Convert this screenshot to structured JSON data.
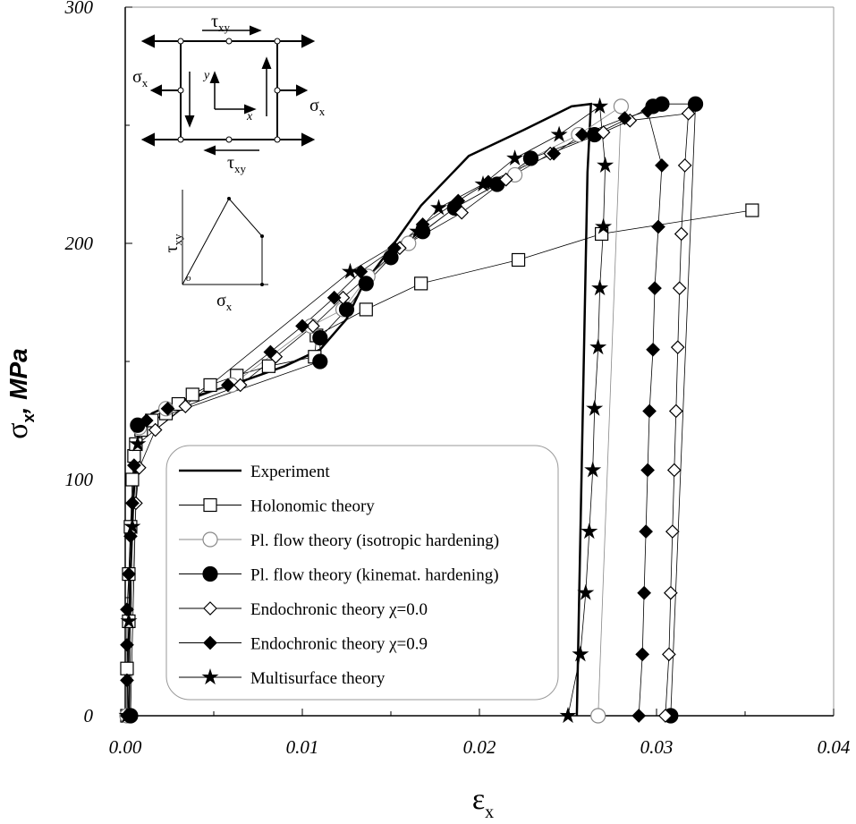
{
  "chart_data": {
    "type": "line",
    "y_label": {
      "symbol": "σ",
      "subscript": "x",
      "unit": ", MPa"
    },
    "x_label": {
      "symbol": "ε",
      "subscript": "x"
    },
    "xlim": [
      0,
      0.04
    ],
    "ylim": [
      0,
      300
    ],
    "xticks": [
      {
        "value": 0,
        "label": "0.00"
      },
      0.01,
      0.02,
      0.03,
      0.04
    ],
    "yticks": [
      0,
      100,
      200,
      300
    ],
    "xminorticks": [
      0.005,
      0.015,
      0.025,
      0.035
    ],
    "yminorticks": [
      50,
      150,
      250
    ],
    "inset": {
      "tau_symbol": "τ",
      "tau_sub": "xy",
      "sigma_symbol": "σ",
      "sigma_sub": "x",
      "axis_y": "y",
      "axis_x": "x",
      "origin": "o"
    },
    "series": [
      {
        "name": "Experiment",
        "color": "#000000",
        "marker": "none",
        "x": [
          0.0002,
          0.0003,
          0.0005,
          0.0008,
          0.0015,
          0.003,
          0.006,
          0.009,
          0.011,
          0.0125,
          0.0134,
          0.0149,
          0.0167,
          0.0194,
          0.0225,
          0.0252,
          0.0263,
          0.0261,
          0.0255
        ],
        "values": [
          0,
          60,
          100,
          120,
          128,
          133,
          140,
          148,
          155,
          168,
          182,
          197,
          216,
          237,
          248,
          258,
          259,
          230,
          0
        ]
      },
      {
        "name": "Holonomic theory",
        "color": "#000000",
        "marker": "square-open",
        "x": [
          0.0001,
          0.0001,
          0.0002,
          0.0002,
          0.0003,
          0.0004,
          0.0005,
          0.0006,
          0.0009,
          0.0015,
          0.0023,
          0.003,
          0.0038,
          0.0048,
          0.0063,
          0.0081,
          0.0107,
          0.0108,
          0.0136,
          0.0167,
          0.0222,
          0.0269,
          0.0354
        ],
        "values": [
          0,
          20,
          40,
          60,
          80,
          100,
          110,
          115,
          121,
          125,
          128,
          132,
          136,
          140,
          144,
          148,
          152,
          161,
          172,
          183,
          193,
          204,
          214
        ]
      },
      {
        "name": "Pl. flow theory (isotropic hardening)",
        "color": "#888888",
        "marker": "circle-open",
        "x": [
          0.0001,
          0.0008,
          0.0023,
          0.006,
          0.0105,
          0.0123,
          0.0137,
          0.016,
          0.0186,
          0.022,
          0.0229,
          0.0256,
          0.028,
          0.0267
        ],
        "values": [
          0,
          122,
          130,
          140,
          165,
          172,
          186,
          200,
          215,
          229,
          236,
          246,
          258,
          0
        ]
      },
      {
        "name": "Pl. flow theory (kinemat. hardening)",
        "color": "#000000",
        "marker": "circle-filled",
        "x": [
          0.0003,
          0.0007,
          0.011,
          0.011,
          0.0125,
          0.0136,
          0.015,
          0.0168,
          0.0186,
          0.021,
          0.0229,
          0.0265,
          0.0298,
          0.0303,
          0.0322,
          0.0308
        ],
        "values": [
          0,
          123,
          150,
          160,
          172,
          183,
          194,
          205,
          215,
          225,
          236,
          246,
          258,
          259,
          259,
          0
        ]
      },
      {
        "name": "Endochronic theory  χ=0.0",
        "color": "#000000",
        "marker": "diamond-open",
        "x": [
          0.0006,
          0.0008,
          0.0017,
          0.0034,
          0.0065,
          0.0085,
          0.0106,
          0.0123,
          0.0155,
          0.019,
          0.0215,
          0.024,
          0.027,
          0.0285,
          0.0318,
          0.0316,
          0.0314,
          0.0313,
          0.0312,
          0.0311,
          0.031,
          0.0309,
          0.0308,
          0.0307,
          0.0305
        ],
        "values": [
          90,
          105,
          121,
          131,
          140,
          152,
          165,
          177,
          198,
          213,
          227,
          238,
          247,
          252,
          255,
          233,
          204,
          181,
          156,
          129,
          104,
          78,
          52,
          26,
          0
        ]
      },
      {
        "name": "Endochronic theory  χ=0.9",
        "color": "#000000",
        "marker": "diamond-filled",
        "x": [
          0.0001,
          0.0001,
          0.0001,
          0.0001,
          0.0002,
          0.0003,
          0.0004,
          0.0005,
          0.0012,
          0.0024,
          0.0058,
          0.0082,
          0.01,
          0.0118,
          0.0133,
          0.0152,
          0.0168,
          0.0188,
          0.0205,
          0.0242,
          0.0258,
          0.0282,
          0.0295,
          0.0303,
          0.0301,
          0.0299,
          0.0298,
          0.0296,
          0.0295,
          0.0294,
          0.0293,
          0.0292,
          0.029
        ],
        "values": [
          0,
          15,
          30,
          45,
          60,
          76,
          90,
          106,
          125,
          130,
          140,
          154,
          165,
          177,
          188,
          198,
          208,
          218,
          226,
          238,
          246,
          253,
          256,
          233,
          207,
          181,
          155,
          129,
          104,
          78,
          52,
          26,
          0
        ]
      },
      {
        "name": "Multisurface theory",
        "color": "#000000",
        "marker": "star",
        "x": [
          0.0001,
          0.0002,
          0.0004,
          0.0007,
          0.0127,
          0.0165,
          0.0177,
          0.0202,
          0.022,
          0.0245,
          0.0268,
          0.0271,
          0.027,
          0.0268,
          0.0267,
          0.0265,
          0.0264,
          0.0262,
          0.026,
          0.0257,
          0.025
        ],
        "values": [
          0,
          40,
          80,
          115,
          188,
          205,
          215,
          225,
          236,
          246,
          258,
          233,
          207,
          181,
          156,
          130,
          104,
          78,
          52,
          26,
          0
        ]
      }
    ]
  }
}
